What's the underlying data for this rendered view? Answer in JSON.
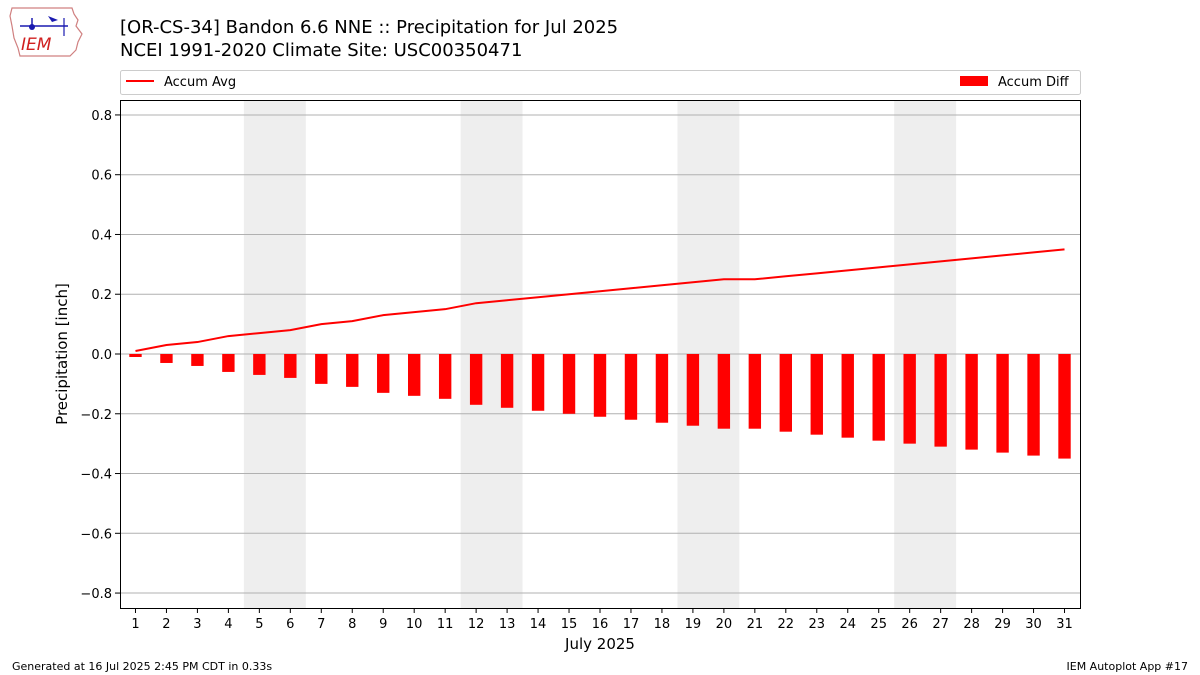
{
  "header": {
    "title_line1": "[OR-CS-34] Bandon 6.6 NNE :: Precipitation for Jul 2025",
    "title_line2": "NCEI 1991-2020 Climate Site: USC00350471"
  },
  "logo": {
    "text": "IEM"
  },
  "footer": {
    "generated": "Generated at 16 Jul 2025 2:45 PM CDT in 0.33s",
    "app": "IEM Autoplot App #17"
  },
  "chart_data": {
    "type": "bar",
    "xlabel": "July 2025",
    "ylabel": "Precipitation [inch]",
    "ylim": [
      -0.85,
      0.85
    ],
    "yticks": [
      -0.8,
      -0.6,
      -0.4,
      -0.2,
      0.0,
      0.2,
      0.4,
      0.6,
      0.8
    ],
    "ytick_labels": [
      "−0.8",
      "−0.6",
      "−0.4",
      "−0.2",
      "0.0",
      "0.2",
      "0.4",
      "0.6",
      "0.8"
    ],
    "grid": true,
    "x": [
      1,
      2,
      3,
      4,
      5,
      6,
      7,
      8,
      9,
      10,
      11,
      12,
      13,
      14,
      15,
      16,
      17,
      18,
      19,
      20,
      21,
      22,
      23,
      24,
      25,
      26,
      27,
      28,
      29,
      30,
      31
    ],
    "weekend_days": [
      5,
      6,
      12,
      13,
      19,
      20,
      26,
      27
    ],
    "series": [
      {
        "name": "Accum Avg",
        "kind": "line",
        "color": "#ff0000",
        "values": [
          0.01,
          0.03,
          0.04,
          0.06,
          0.07,
          0.08,
          0.1,
          0.11,
          0.13,
          0.14,
          0.15,
          0.17,
          0.18,
          0.19,
          0.2,
          0.21,
          0.22,
          0.23,
          0.24,
          0.25,
          0.25,
          0.26,
          0.27,
          0.28,
          0.29,
          0.3,
          0.31,
          0.32,
          0.33,
          0.34,
          0.35
        ]
      },
      {
        "name": "Accum Diff",
        "kind": "bar",
        "color": "#ff0000",
        "values": [
          -0.01,
          -0.03,
          -0.04,
          -0.06,
          -0.07,
          -0.08,
          -0.1,
          -0.11,
          -0.13,
          -0.14,
          -0.15,
          -0.17,
          -0.18,
          -0.19,
          -0.2,
          -0.21,
          -0.22,
          -0.23,
          -0.24,
          -0.25,
          -0.25,
          -0.26,
          -0.27,
          -0.28,
          -0.29,
          -0.3,
          -0.31,
          -0.32,
          -0.33,
          -0.34,
          -0.35
        ]
      }
    ],
    "legend": {
      "placement": "top, above axes"
    }
  }
}
